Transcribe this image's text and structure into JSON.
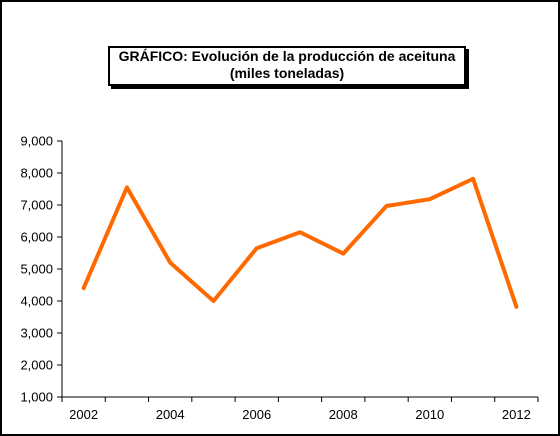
{
  "chart_data": {
    "type": "line",
    "title": "GRÁFICO: Evolución de la producción de aceituna",
    "subtitle": "(miles toneladas)",
    "xlabel": "",
    "ylabel": "",
    "x": [
      2002,
      2003,
      2004,
      2005,
      2006,
      2007,
      2008,
      2009,
      2010,
      2011,
      2012
    ],
    "x_tick_labels": [
      "2002",
      "2004",
      "2006",
      "2008",
      "2010",
      "2012"
    ],
    "y_tick_labels": [
      "9,000",
      "8,000",
      "7,000",
      "6,000",
      "5,000",
      "4,000",
      "3,000",
      "2,000",
      "1,000"
    ],
    "ylim": [
      1000,
      9000
    ],
    "grid": false,
    "legend": "none",
    "series": [
      {
        "color": "#ff6a00",
        "values": [
          4400,
          7550,
          5200,
          4000,
          5650,
          6150,
          5480,
          6970,
          7180,
          7820,
          3820
        ]
      }
    ]
  }
}
